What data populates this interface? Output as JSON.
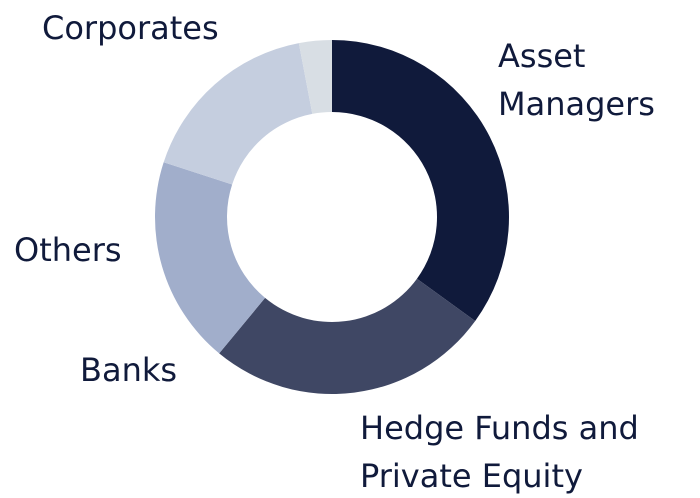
{
  "chart_data": {
    "type": "donut",
    "categories": [
      "Corporates",
      "Asset Managers",
      "Hedge Funds and Private Equity",
      "Banks",
      "Others"
    ],
    "values": [
      35,
      26,
      19,
      17,
      3
    ],
    "colors": [
      "#101a3b",
      "#3f4764",
      "#a1aecb",
      "#c5cedf",
      "#d8dee4"
    ]
  }
}
